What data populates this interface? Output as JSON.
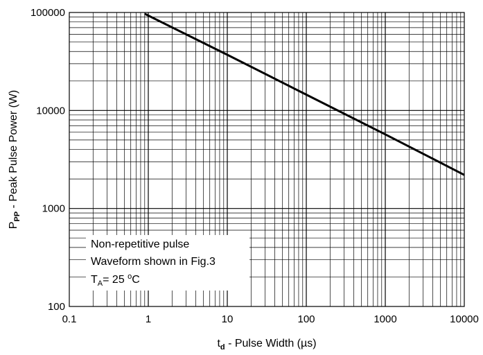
{
  "chart_data": {
    "type": "line",
    "x_scale": "log",
    "y_scale": "log",
    "xlim": [
      0.1,
      10000
    ],
    "ylim": [
      100,
      100000
    ],
    "x_ticks": [
      "0.1",
      "1",
      "10",
      "100",
      "1000",
      "10000"
    ],
    "y_ticks": [
      "100",
      "1000",
      "10000",
      "100000"
    ],
    "xlabel": {
      "main": "t",
      "sub": "d",
      "rest": " - Pulse Width (µs)"
    },
    "ylabel": {
      "main": "P",
      "sub": "PP",
      "rest": " - Peak Pulse Power (W)"
    },
    "grid": true,
    "series": [
      {
        "x": [
          0.9,
          10,
          100,
          1000,
          10000
        ],
        "y": [
          97000,
          37000,
          14500,
          5700,
          2200
        ]
      }
    ],
    "annotation": {
      "line1": "Non-repetitive pulse",
      "line2": "Waveform shown in Fig.3",
      "line3_main": "T",
      "line3_sub": "A",
      "line3_eq": "= 25 ",
      "line3_deg": "o",
      "line3_unit": "C"
    }
  }
}
